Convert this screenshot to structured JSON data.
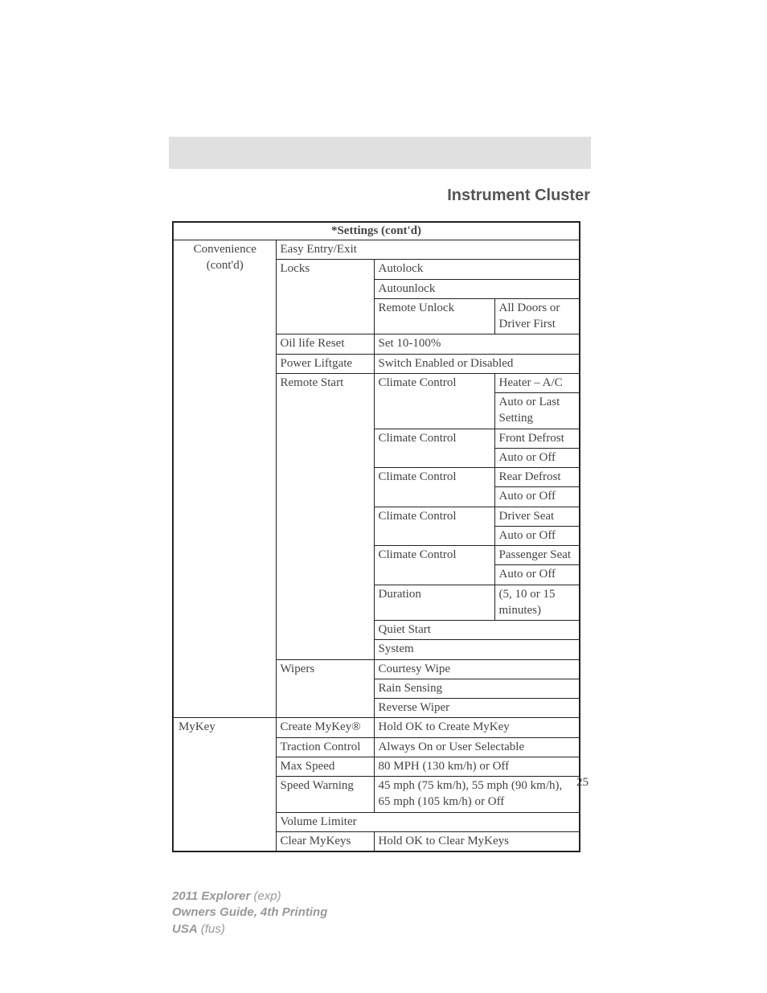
{
  "section_title": "Instrument Cluster",
  "table_header": "*Settings (cont'd)",
  "page_number": "25",
  "convenience_label_1": "Convenience",
  "convenience_label_2": "(cont'd)",
  "mykey_label": "MyKey",
  "rows": {
    "easy_entry": "Easy Entry/Exit",
    "locks": "Locks",
    "autolock": "Autolock",
    "autounlock": "Autounlock",
    "remote_unlock": "Remote Unlock",
    "remote_unlock_val": "All Doors or Driver First",
    "oil_life": "Oil life Reset",
    "oil_life_val": "Set 10-100%",
    "power_liftgate": "Power Liftgate",
    "power_liftgate_val": "Switch Enabled or Disabled",
    "remote_start": "Remote Start",
    "climate_control": "Climate Control",
    "heater_ac": "Heater – A/C",
    "auto_last": "Auto or Last Setting",
    "front_defrost": "Front Defrost",
    "auto_off": "Auto or Off",
    "rear_defrost": "Rear Defrost",
    "driver_seat": "Driver Seat",
    "passenger_seat": "Passenger Seat",
    "duration": "Duration",
    "duration_val": "(5, 10 or 15 minutes)",
    "quiet_start": "Quiet Start",
    "system": "System",
    "wipers": "Wipers",
    "courtesy_wipe": "Courtesy Wipe",
    "rain_sensing": "Rain Sensing",
    "reverse_wiper": "Reverse Wiper",
    "create_mykey": "Create MyKey®",
    "create_mykey_val": "Hold OK to Create MyKey",
    "traction": "Traction Control",
    "traction_val": "Always On or User Selectable",
    "max_speed": "Max Speed",
    "max_speed_val": "80 MPH (130 km/h) or Off",
    "speed_warning": "Speed Warning",
    "speed_warning_val": "45 mph (75 km/h), 55 mph (90 km/h), 65 mph (105 km/h) or Off",
    "volume_limiter": "Volume Limiter",
    "clear_mykeys": "Clear MyKeys",
    "clear_mykeys_val": "Hold OK to Clear MyKeys"
  },
  "footer": {
    "line1_bold": "2011 Explorer",
    "line1_italic": "(exp)",
    "line2": "Owners Guide, 4th Printing",
    "line3_bold": "USA",
    "line3_italic": "(fus)"
  }
}
